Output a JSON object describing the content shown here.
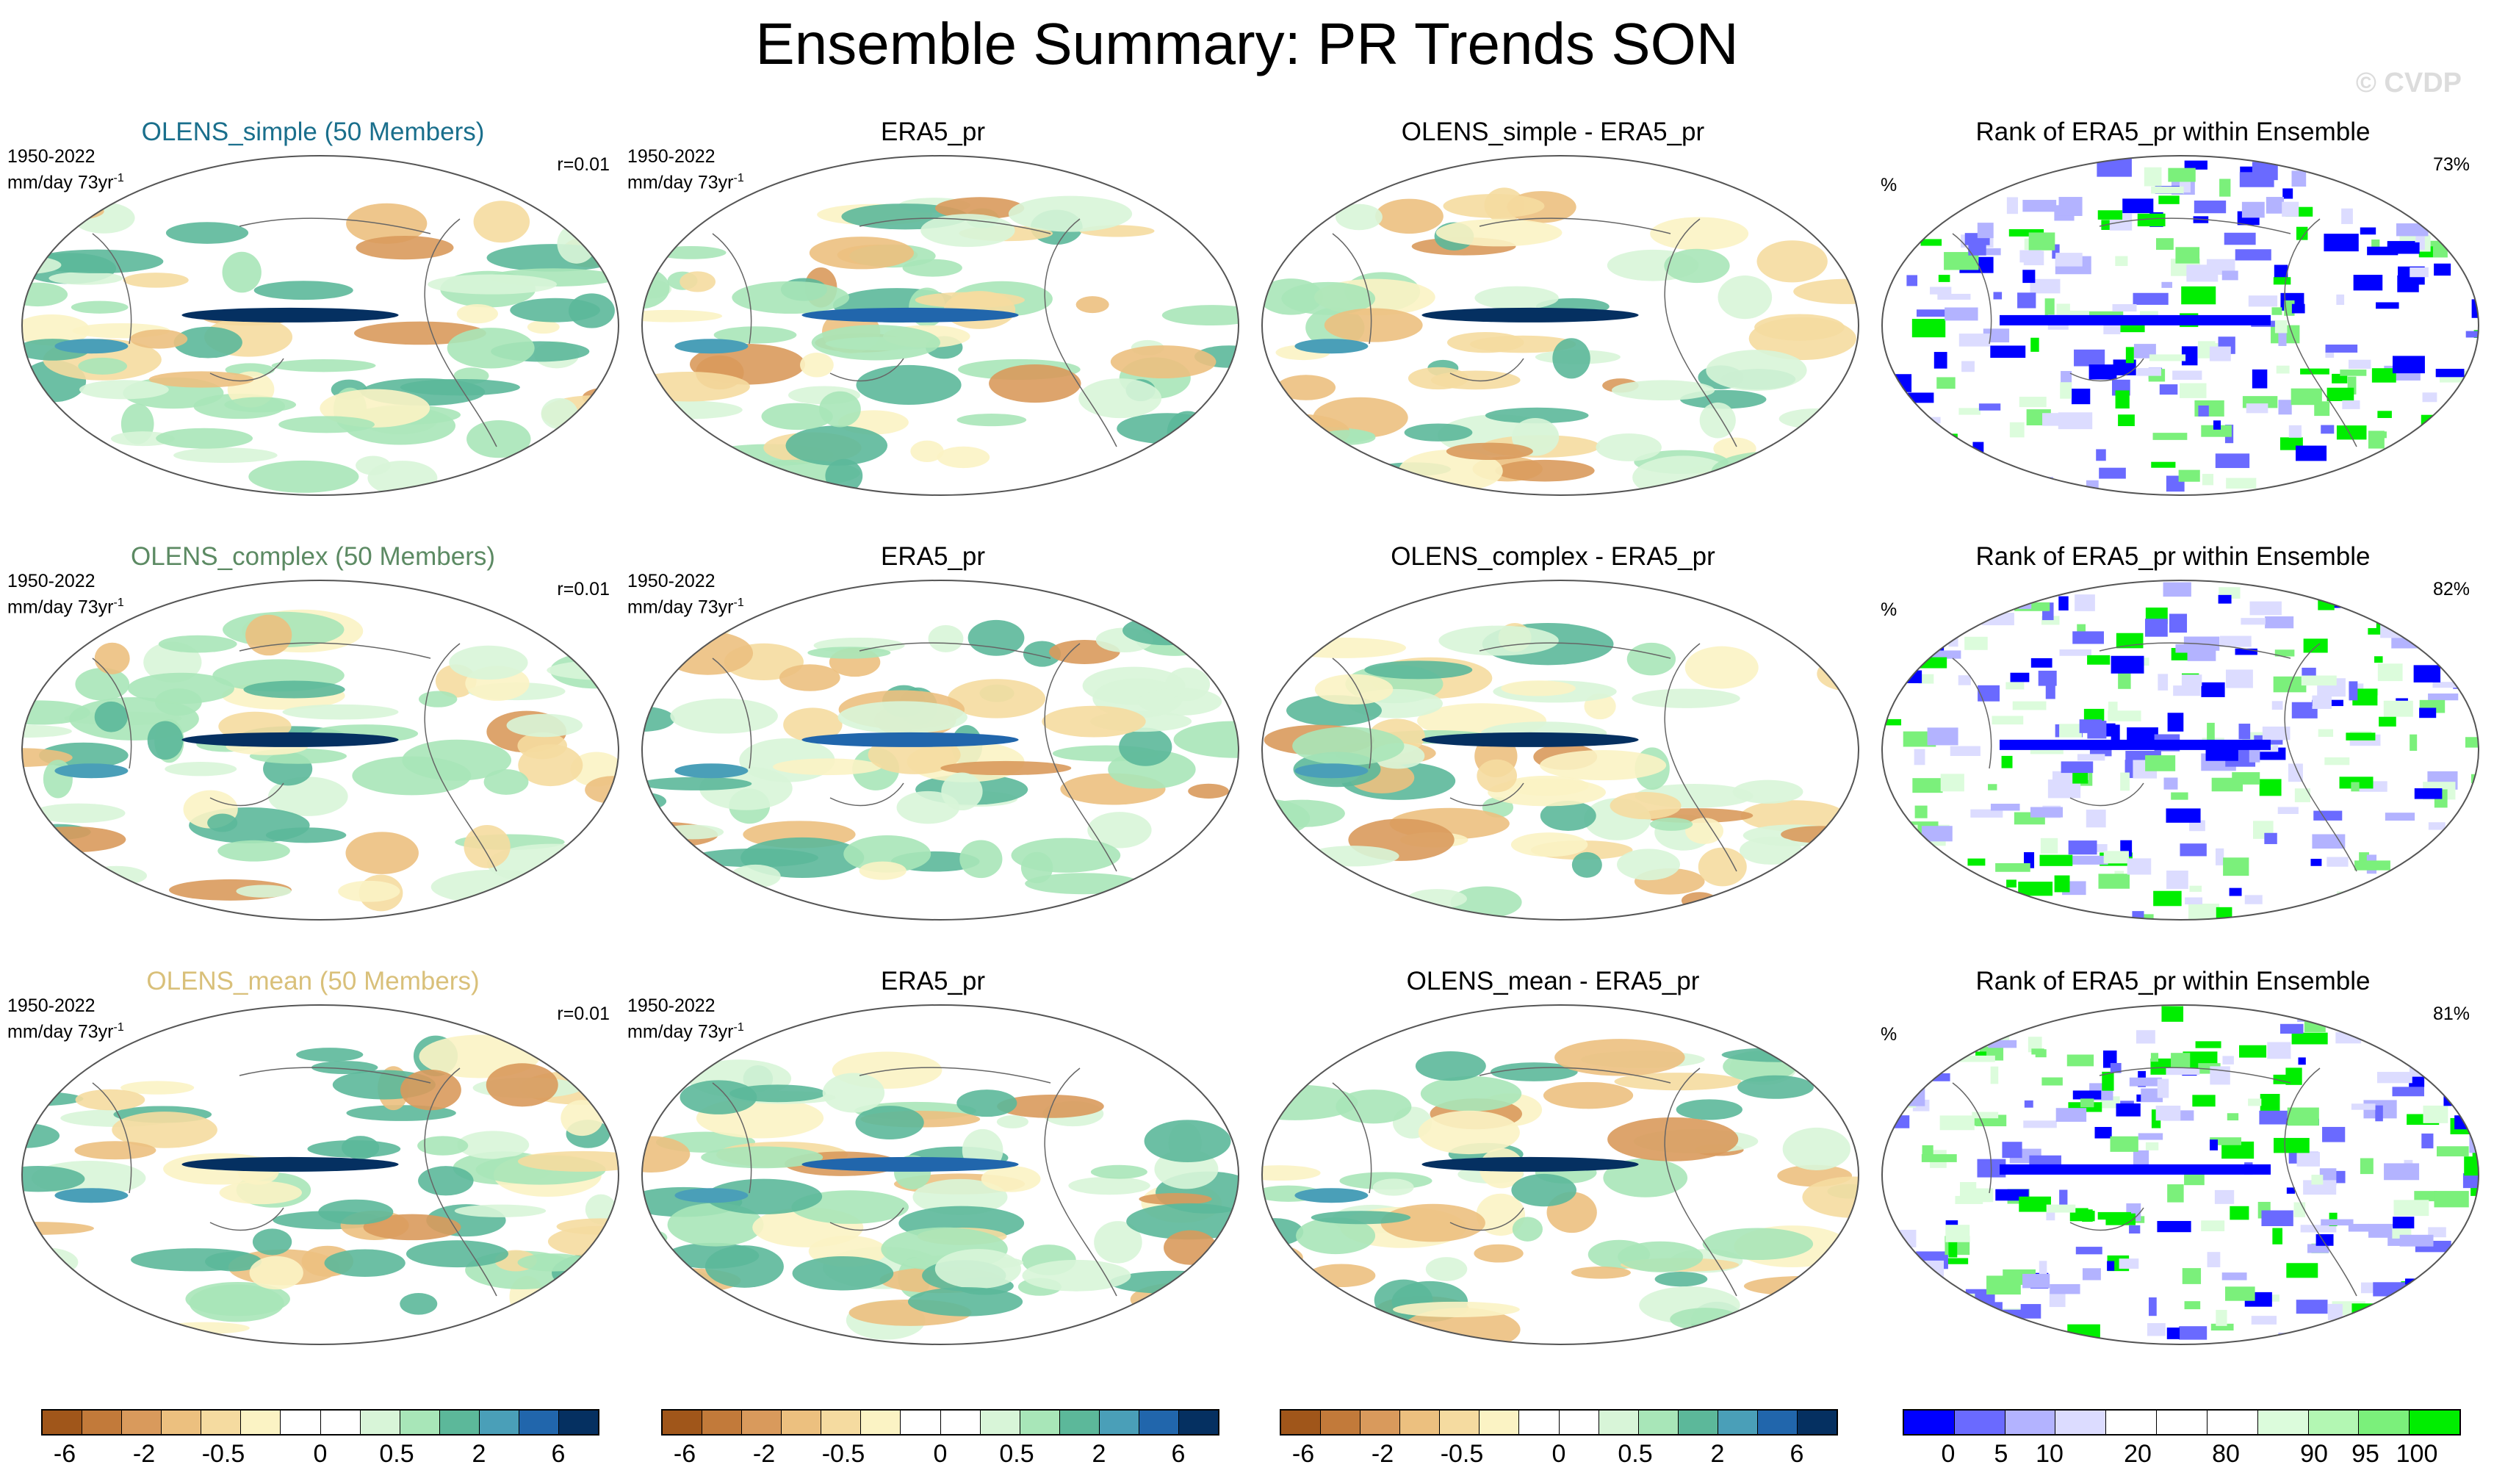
{
  "title": "Ensemble Summary: PR Trends SON",
  "watermark": "© CVDP",
  "rows": [
    {
      "model": {
        "title": "OLENS_simple (50 Members)",
        "title_color": "#1a6f8c",
        "period": "1950-2022",
        "units": "mm/day 73yr",
        "units_sup": "-1",
        "r": "r=0.01"
      },
      "obs": {
        "title": "ERA5_pr",
        "period": "1950-2022",
        "units": "mm/day 73yr",
        "units_sup": "-1"
      },
      "diff": {
        "title": "OLENS_simple - ERA5_pr"
      },
      "rank": {
        "title": "Rank of ERA5_pr within Ensemble",
        "pct_label": "%",
        "pct_value": "73%"
      }
    },
    {
      "model": {
        "title": "OLENS_complex (50 Members)",
        "title_color": "#5c8a63",
        "period": "1950-2022",
        "units": "mm/day 73yr",
        "units_sup": "-1",
        "r": "r=0.01"
      },
      "obs": {
        "title": "ERA5_pr",
        "period": "1950-2022",
        "units": "mm/day 73yr",
        "units_sup": "-1"
      },
      "diff": {
        "title": "OLENS_complex - ERA5_pr"
      },
      "rank": {
        "title": "Rank of ERA5_pr within Ensemble",
        "pct_label": "%",
        "pct_value": "82%"
      }
    },
    {
      "model": {
        "title": "OLENS_mean (50 Members)",
        "title_color": "#d9c07a",
        "period": "1950-2022",
        "units": "mm/day 73yr",
        "units_sup": "-1",
        "r": "r=0.01"
      },
      "obs": {
        "title": "ERA5_pr",
        "period": "1950-2022",
        "units": "mm/day 73yr",
        "units_sup": "-1"
      },
      "diff": {
        "title": "OLENS_mean - ERA5_pr"
      },
      "rank": {
        "title": "Rank of ERA5_pr within Ensemble",
        "pct_label": "%",
        "pct_value": "81%"
      }
    }
  ],
  "colorbars": {
    "trend": {
      "colors": [
        "#a0561a",
        "#c27a3a",
        "#d99a5c",
        "#ecc07f",
        "#f5dba0",
        "#fbf3c4",
        "#ffffff",
        "#ffffff",
        "#d8f5d8",
        "#a8e6b8",
        "#5cb89a",
        "#4a9fb8",
        "#2166ac",
        "#053061"
      ],
      "labels": [
        "-6",
        "-2",
        "-0.5",
        "0",
        "0.5",
        "2",
        "6"
      ]
    },
    "rank": {
      "colors": [
        "#0000ff",
        "#6a6aff",
        "#b3b3ff",
        "#dcdcff",
        "#ffffff",
        "#ffffff",
        "#ffffff",
        "#dcfcdc",
        "#b3f7b3",
        "#7bf07b",
        "#00ee00"
      ],
      "labels": [
        "0",
        "5",
        "10",
        "20",
        "80",
        "90",
        "95",
        "100"
      ]
    }
  }
}
